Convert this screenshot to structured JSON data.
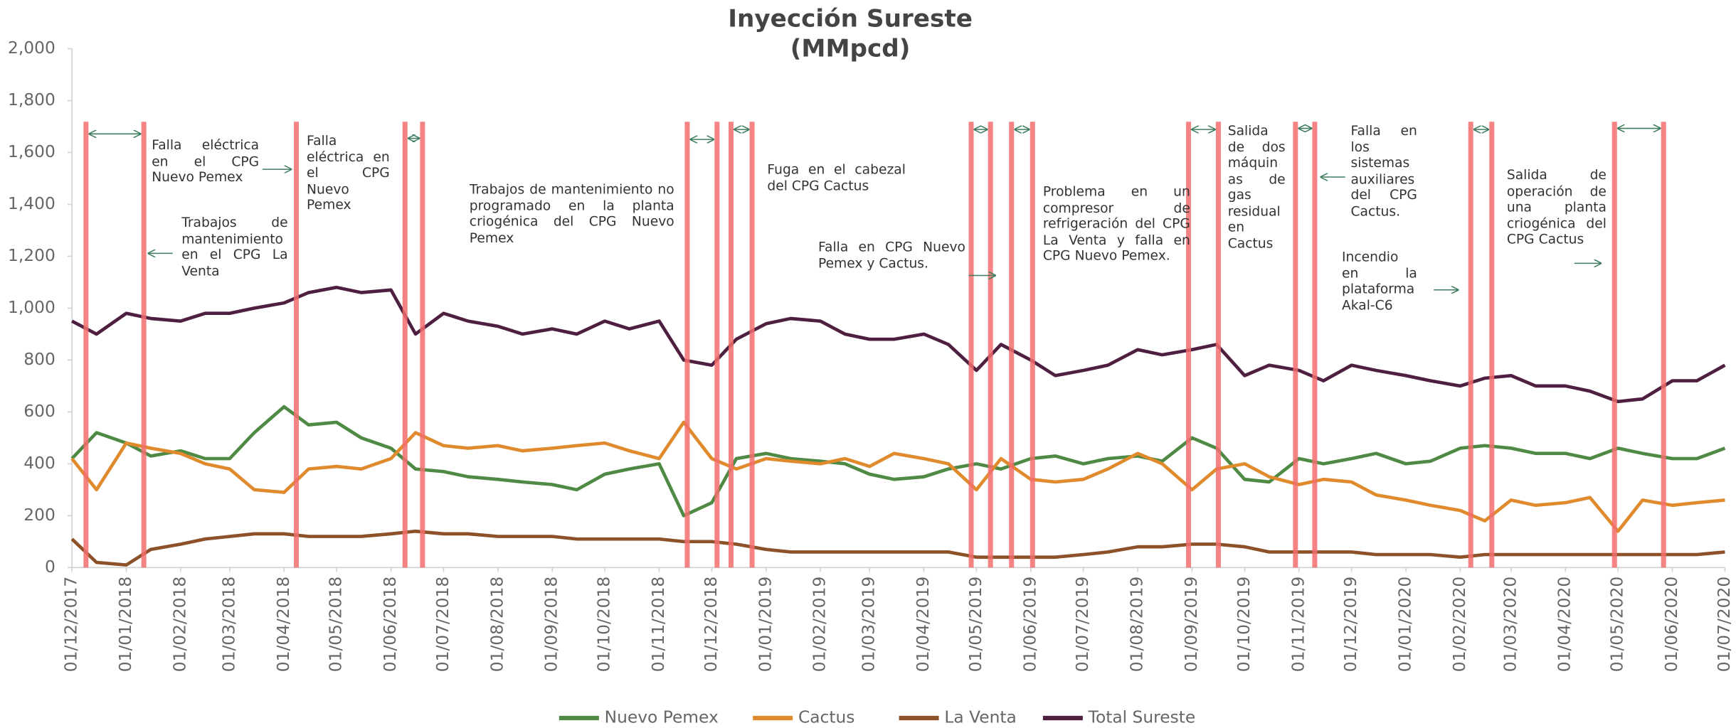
{
  "chart_data": {
    "type": "line",
    "title": "Inyección Sureste",
    "subtitle": "(MMpcd)",
    "x": [
      "01/12/2017",
      "15/12/2017",
      "01/01/2018",
      "15/01/2018",
      "01/02/2018",
      "15/02/2018",
      "01/03/2018",
      "15/03/2018",
      "01/04/2018",
      "15/04/2018",
      "01/05/2018",
      "15/05/2018",
      "01/06/2018",
      "15/06/2018",
      "01/07/2018",
      "15/07/2018",
      "01/08/2018",
      "15/08/2018",
      "01/09/2018",
      "15/09/2018",
      "01/10/2018",
      "15/10/2018",
      "01/11/2018",
      "15/11/2018",
      "01/12/2018",
      "15/12/2018",
      "01/01/2019",
      "15/01/2019",
      "01/02/2019",
      "15/02/2019",
      "01/03/2019",
      "15/03/2019",
      "01/04/2019",
      "15/04/2019",
      "01/05/2019",
      "15/05/2019",
      "01/06/2019",
      "15/06/2019",
      "01/07/2019",
      "15/07/2019",
      "01/08/2019",
      "15/08/2019",
      "01/09/2019",
      "15/09/2019",
      "01/10/2019",
      "15/10/2019",
      "01/11/2019",
      "15/11/2019",
      "01/12/2019",
      "15/12/2019",
      "01/01/2020",
      "15/01/2020",
      "01/02/2020",
      "15/02/2020",
      "01/03/2020",
      "15/03/2020",
      "01/04/2020",
      "15/04/2020",
      "01/05/2020",
      "15/05/2020",
      "01/06/2020",
      "15/06/2020",
      "01/07/2020"
    ],
    "series": [
      {
        "name": "Nuevo Pemex",
        "color": "#4f8a45",
        "values": [
          420,
          520,
          480,
          430,
          450,
          420,
          420,
          520,
          620,
          550,
          560,
          500,
          460,
          380,
          370,
          350,
          340,
          330,
          320,
          300,
          360,
          380,
          400,
          200,
          250,
          420,
          440,
          420,
          410,
          400,
          360,
          340,
          350,
          380,
          400,
          380,
          420,
          430,
          400,
          420,
          430,
          410,
          500,
          460,
          340,
          330,
          420,
          400,
          420,
          440,
          400,
          410,
          460,
          470,
          460,
          440,
          440,
          420,
          460,
          440,
          420,
          420,
          460
        ]
      },
      {
        "name": "Cactus",
        "color": "#e08a2e",
        "values": [
          420,
          300,
          480,
          460,
          440,
          400,
          380,
          300,
          290,
          380,
          390,
          380,
          420,
          520,
          470,
          460,
          470,
          450,
          460,
          470,
          480,
          450,
          420,
          560,
          420,
          380,
          420,
          410,
          400,
          420,
          390,
          440,
          420,
          400,
          300,
          420,
          340,
          330,
          340,
          380,
          440,
          400,
          300,
          380,
          400,
          350,
          320,
          340,
          330,
          280,
          260,
          240,
          220,
          180,
          260,
          240,
          250,
          270,
          140,
          260,
          240,
          250,
          260
        ]
      },
      {
        "name": "La Venta",
        "color": "#8c5128",
        "values": [
          110,
          20,
          10,
          70,
          90,
          110,
          120,
          130,
          130,
          120,
          120,
          120,
          130,
          140,
          130,
          130,
          120,
          120,
          120,
          110,
          110,
          110,
          110,
          100,
          100,
          90,
          70,
          60,
          60,
          60,
          60,
          60,
          60,
          60,
          40,
          40,
          40,
          40,
          50,
          60,
          80,
          80,
          90,
          90,
          80,
          60,
          60,
          60,
          60,
          50,
          50,
          50,
          40,
          50,
          50,
          50,
          50,
          50,
          50,
          50,
          50,
          50,
          60
        ]
      },
      {
        "name": "Total Sureste",
        "color": "#4e1f40",
        "values": [
          950,
          900,
          980,
          960,
          950,
          980,
          980,
          1000,
          1020,
          1060,
          1080,
          1060,
          1070,
          900,
          980,
          950,
          930,
          900,
          920,
          900,
          950,
          920,
          950,
          800,
          780,
          880,
          940,
          960,
          950,
          900,
          880,
          880,
          900,
          860,
          760,
          860,
          800,
          740,
          760,
          780,
          840,
          820,
          840,
          860,
          740,
          780,
          760,
          720,
          780,
          760,
          740,
          720,
          700,
          730,
          740,
          700,
          700,
          680,
          640,
          650,
          720,
          720,
          780
        ]
      }
    ],
    "xlim": [
      "01/12/2017",
      "01/07/2020"
    ],
    "xticks": [
      "01/12/2017",
      "01/01/2018",
      "01/02/2018",
      "01/03/2018",
      "01/04/2018",
      "01/05/2018",
      "01/06/2018",
      "01/07/2018",
      "01/08/2018",
      "01/09/2018",
      "01/10/2018",
      "01/11/2018",
      "01/12/2018",
      "01/01/2019",
      "01/02/2019",
      "01/03/2019",
      "01/04/2019",
      "01/05/2019",
      "01/06/2019",
      "01/07/2019",
      "01/08/2019",
      "01/09/2019",
      "01/10/2019",
      "01/11/2019",
      "01/12/2019",
      "01/01/2020",
      "01/02/2020",
      "01/03/2020",
      "01/04/2020",
      "01/05/2020",
      "01/06/2020",
      "01/07/2020"
    ],
    "ylim": [
      0,
      2000
    ],
    "yticks": [
      0,
      200,
      400,
      600,
      800,
      {
        "value": 1000,
        "label": "1,000"
      },
      {
        "value": 1200,
        "label": "1,200"
      },
      {
        "value": 1400,
        "label": "1,400"
      },
      {
        "value": 1600,
        "label": "1,600"
      },
      {
        "value": 1800,
        "label": "1,800"
      },
      {
        "value": 2000,
        "label": "2,000"
      }
    ],
    "grid": false,
    "legend": "bottom",
    "event_color": "#f26d6d",
    "event_lines": [
      "09/12/2017",
      "11/01/2018",
      "08/04/2018",
      "09/06/2018",
      "19/06/2018",
      "17/11/2018",
      "04/12/2018",
      "12/12/2018",
      "24/12/2018",
      "28/04/2019",
      "09/05/2019",
      "21/05/2019",
      "02/06/2019",
      "30/08/2019",
      "16/09/2019",
      "30/10/2019",
      "10/11/2019",
      "07/02/2020",
      "19/02/2020",
      "29/04/2020",
      "27/05/2020"
    ],
    "annotations": [
      "Falla eléctrica en el CPG Nuevo Pemex",
      "Trabajos de mantenimiento en el CPG La Venta",
      "Falla eléctrica en el CPG Nuevo Pemex",
      "Trabajos de mantenimiento no programado en la planta criogénica del CPG Nuevo Pemex",
      "Fuga en el cabezal del CPG Cactus",
      "Falla en CPG Nuevo Pemex y Cactus.",
      "Problema en un compresor de refrigeración del CPG La Venta y falla en CPG Nuevo Pemex.",
      "Salida de dos máquinas de gas residual en Cactus",
      "Falla en los sistemas auxiliares del CPG Cactus.",
      "Incendio en la plataforma Akal-C6",
      "Salida de operación de una planta criogénica del CPG Cactus"
    ]
  }
}
